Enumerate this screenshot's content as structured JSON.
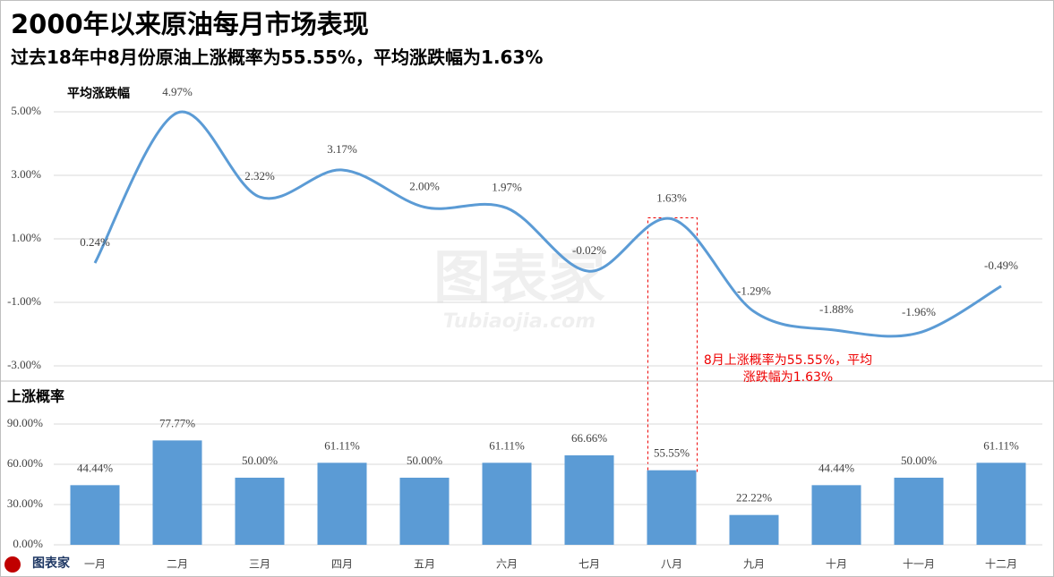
{
  "title": "2000年以来原油每月市场表现",
  "subtitle": "过去18年中8月份原油上涨概率为55.55%，平均涨跌幅为1.63%",
  "watermark": {
    "name": "图表家",
    "url": "Tubiaojia.com"
  },
  "chart_data": [
    {
      "type": "line",
      "y_label": "平均涨跌幅",
      "color": "#5b9bd5",
      "smooth": true,
      "grid": true,
      "values": [
        0.24,
        4.97,
        2.32,
        3.17,
        2.0,
        1.97,
        -0.02,
        1.63,
        -1.29,
        -1.88,
        -1.96,
        -0.49
      ],
      "value_labels": [
        "0.24%",
        "4.97%",
        "2.32%",
        "3.17%",
        "2.00%",
        "1.97%",
        "-0.02%",
        "1.63%",
        "-1.29%",
        "-1.88%",
        "-1.96%",
        "-0.49%"
      ],
      "ylim": [
        -3,
        5
      ],
      "yticks": [
        {
          "value": 5,
          "label": "5.00%"
        },
        {
          "value": 3,
          "label": "3.00%"
        },
        {
          "value": 1,
          "label": "1.00%"
        },
        {
          "value": -1,
          "label": "-1.00%"
        },
        {
          "value": -3,
          "label": "-3.00%"
        }
      ],
      "annotation": "8月上涨概率为55.55%，平均涨跌幅为1.63%"
    },
    {
      "type": "bar",
      "y_label": "上涨概率",
      "color": "#5b9bd5",
      "grid": true,
      "categories": [
        "一月",
        "二月",
        "三月",
        "四月",
        "五月",
        "六月",
        "七月",
        "八月",
        "九月",
        "十月",
        "十一月",
        "十二月"
      ],
      "values": [
        44.44,
        77.77,
        50.0,
        61.11,
        50.0,
        61.11,
        66.66,
        55.55,
        22.22,
        44.44,
        50.0,
        61.11
      ],
      "value_labels": [
        "44.44%",
        "77.77%",
        "50.00%",
        "61.11%",
        "50.00%",
        "61.11%",
        "66.66%",
        "55.55%",
        "22.22%",
        "44.44%",
        "50.00%",
        "61.11%"
      ],
      "ylim": [
        0,
        90
      ],
      "yticks": [
        {
          "value": 0,
          "label": "0.00%"
        },
        {
          "value": 30,
          "label": "30.00%"
        },
        {
          "value": 60,
          "label": "60.00%"
        },
        {
          "value": 90,
          "label": "90.00%"
        }
      ]
    }
  ]
}
